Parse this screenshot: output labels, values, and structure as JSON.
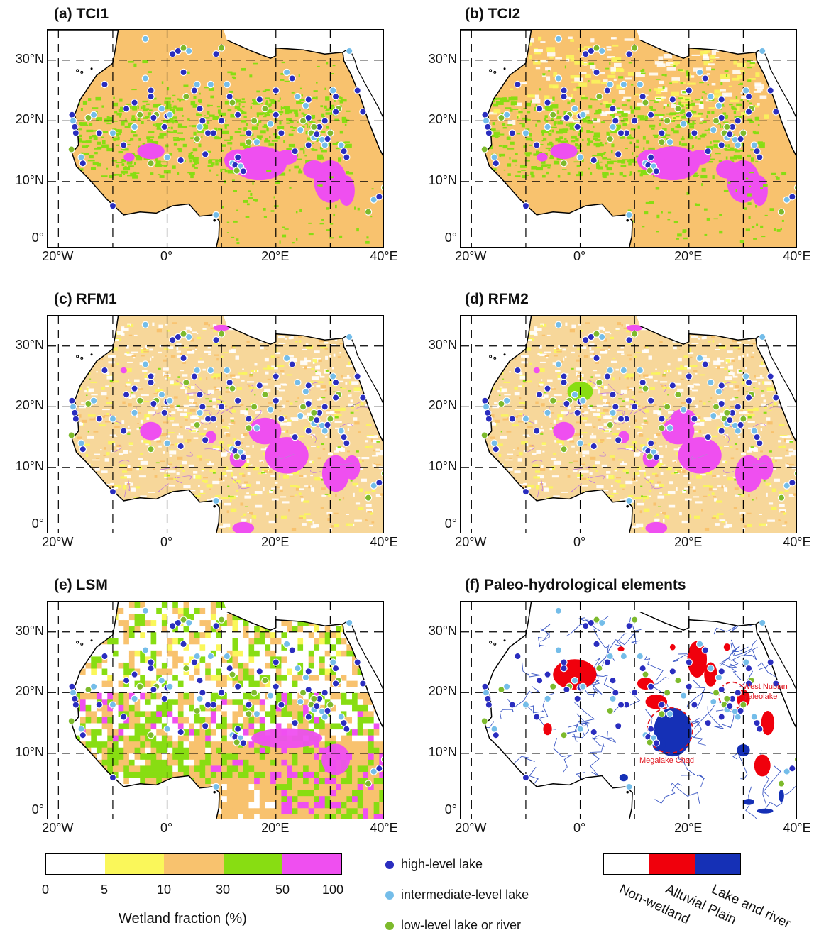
{
  "panels": [
    {
      "id": "a",
      "title": "(a) TCI1"
    },
    {
      "id": "b",
      "title": "(b) TCI2"
    },
    {
      "id": "c",
      "title": "(c) RFM1"
    },
    {
      "id": "d",
      "title": "(d) RFM2"
    },
    {
      "id": "e",
      "title": "(e) LSM"
    },
    {
      "id": "f",
      "title": "(f) Paleo-hydrological elements"
    }
  ],
  "axes": {
    "lat_labels": [
      "30°N",
      "20°N",
      "10°N",
      "0°"
    ],
    "lon_labels": [
      "20°W",
      "0°",
      "20°E",
      "40°E"
    ]
  },
  "colorbar": {
    "title": "Wetland fraction (%)",
    "ticks": [
      "0",
      "5",
      "10",
      "30",
      "50",
      "100"
    ],
    "colors": [
      "#ffffff",
      "#faf75a",
      "#f8c26e",
      "#88dd12",
      "#ef4ff0"
    ]
  },
  "point_legend": [
    {
      "label": "high-level lake",
      "color": "#2a2dbf"
    },
    {
      "label": "intermediate-level lake",
      "color": "#74bde9"
    },
    {
      "label": "low-level lake or river",
      "color": "#7dba2c"
    }
  ],
  "paleo_legend": [
    {
      "label": "Non-wetland",
      "color": "#ffffff"
    },
    {
      "label": "Alluvial Plain",
      "color": "#f0000c"
    },
    {
      "label": "Lake and river",
      "color": "#1530b6"
    }
  ],
  "annotations": {
    "west_nubian": [
      "West Nubian",
      "Paleolake"
    ],
    "megalake": "Megalake Chad"
  }
}
